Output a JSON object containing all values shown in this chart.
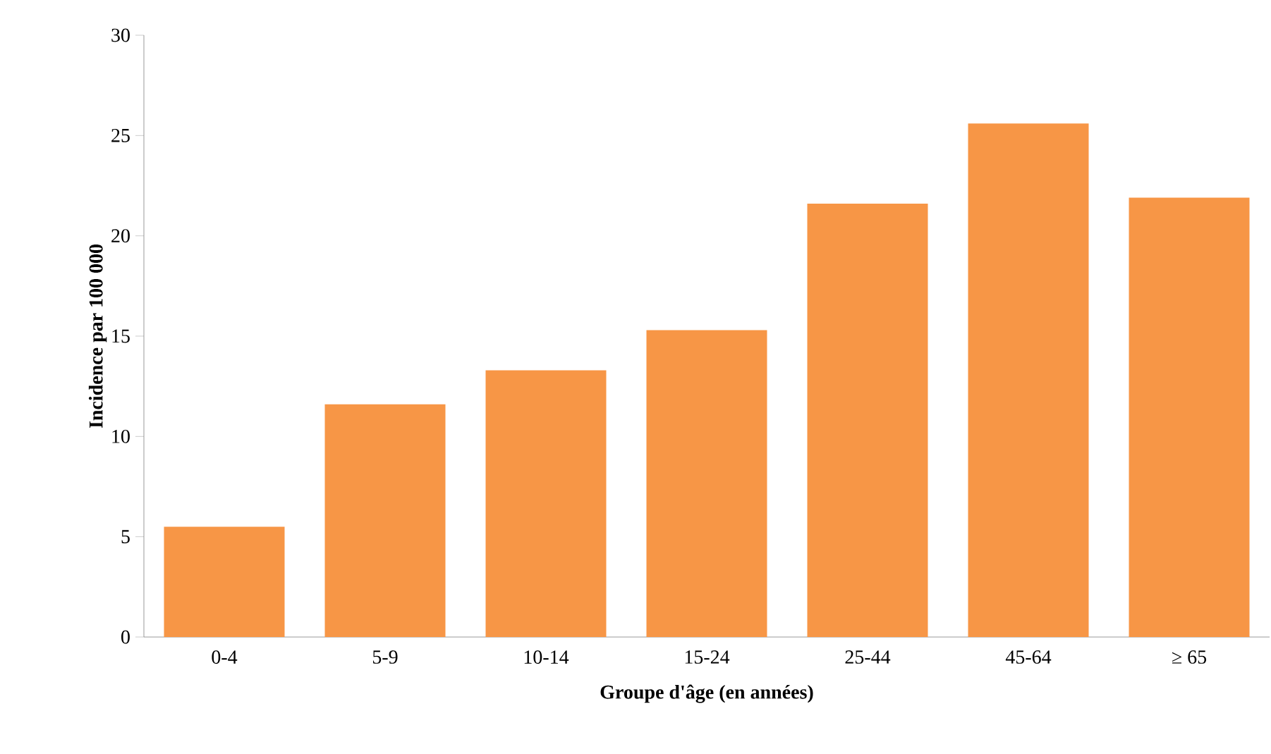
{
  "chart_data": {
    "type": "bar",
    "xlabel": "Groupe d'âge (en années)",
    "ylabel": "Incidence par 100 000",
    "categories": [
      "0-4",
      "5-9",
      "10-14",
      "15-24",
      "25-44",
      "45-64",
      "≥ 65"
    ],
    "values": [
      5.5,
      11.6,
      13.3,
      15.3,
      21.6,
      25.6,
      21.9
    ],
    "color": "#f79646",
    "ylim": [
      0,
      30
    ],
    "yticks": [
      0,
      5,
      10,
      15,
      20,
      25,
      30
    ],
    "grid": false
  }
}
